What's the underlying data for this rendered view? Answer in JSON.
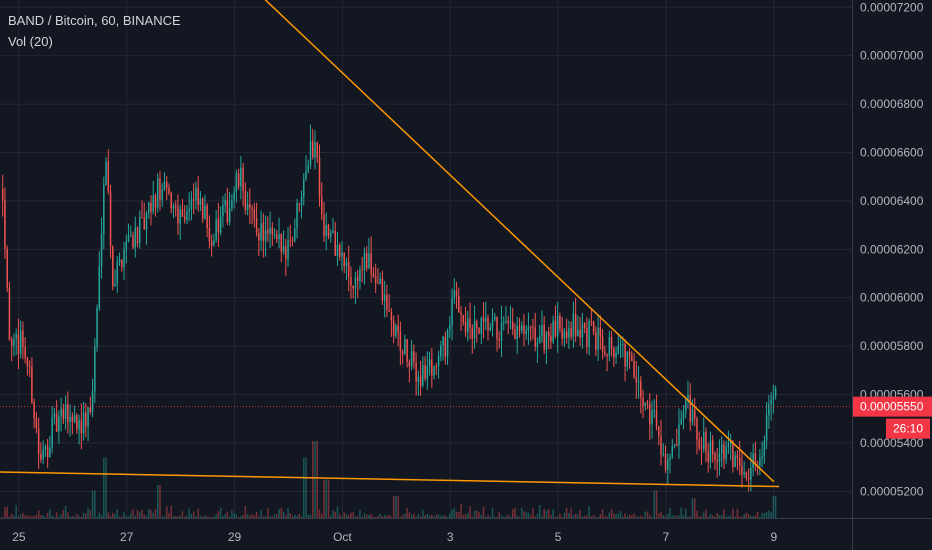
{
  "chart_data": {
    "type": "candlestick",
    "title": "BAND / Bitcoin, 60, BINANCE",
    "indicator": "Vol (20)",
    "x_tick_labels": [
      "25",
      "27",
      "29",
      "Oct",
      "3",
      "5",
      "7",
      "9"
    ],
    "y_tick_labels": [
      "0.00007200",
      "0.00007000",
      "0.00006800",
      "0.00006600",
      "0.00006400",
      "0.00006200",
      "0.00006000",
      "0.00005800",
      "0.00005600",
      "0.00005400",
      "0.00005200"
    ],
    "y_ticks": [
      7.2e-05,
      7e-05,
      6.8e-05,
      6.6e-05,
      6.4e-05,
      6.2e-05,
      6e-05,
      5.8e-05,
      5.6e-05,
      5.4e-05,
      5.2e-05
    ],
    "ylim": [
      5.09e-05,
      7.23e-05
    ],
    "x_ticks_days": [
      25,
      27,
      29,
      31,
      33,
      35,
      37,
      39
    ],
    "xlim_days": [
      24.65,
      40.45
    ],
    "price_path": [
      [
        24.7,
        6.45e-05
      ],
      [
        24.85,
        5.75e-05
      ],
      [
        25.05,
        5.85e-05
      ],
      [
        25.25,
        5.6e-05
      ],
      [
        25.4,
        5.3e-05
      ],
      [
        25.6,
        5.45e-05
      ],
      [
        25.9,
        5.52e-05
      ],
      [
        26.2,
        5.48e-05
      ],
      [
        26.35,
        5.55e-05
      ],
      [
        26.5,
        6.15e-05
      ],
      [
        26.6,
        6.65e-05
      ],
      [
        26.75,
        6.05e-05
      ],
      [
        27.0,
        6.25e-05
      ],
      [
        27.3,
        6.28e-05
      ],
      [
        27.6,
        6.45e-05
      ],
      [
        28.0,
        6.35e-05
      ],
      [
        28.3,
        6.4e-05
      ],
      [
        28.6,
        6.25e-05
      ],
      [
        28.9,
        6.38e-05
      ],
      [
        29.1,
        6.5e-05
      ],
      [
        29.3,
        6.32e-05
      ],
      [
        29.6,
        6.25e-05
      ],
      [
        29.9,
        6.2e-05
      ],
      [
        30.1,
        6.28e-05
      ],
      [
        30.3,
        6.55e-05
      ],
      [
        30.5,
        6.65e-05
      ],
      [
        30.65,
        6.3e-05
      ],
      [
        30.9,
        6.2e-05
      ],
      [
        31.2,
        6.05e-05
      ],
      [
        31.4,
        6.15e-05
      ],
      [
        31.6,
        6.1e-05
      ],
      [
        31.9,
        5.9e-05
      ],
      [
        32.2,
        5.75e-05
      ],
      [
        32.4,
        5.68e-05
      ],
      [
        32.7,
        5.72e-05
      ],
      [
        32.9,
        5.8e-05
      ],
      [
        33.1,
        6.02e-05
      ],
      [
        33.35,
        5.85e-05
      ],
      [
        33.7,
        5.87e-05
      ],
      [
        34.2,
        5.85e-05
      ],
      [
        34.6,
        5.83e-05
      ],
      [
        34.9,
        5.85e-05
      ],
      [
        35.2,
        5.9e-05
      ],
      [
        35.5,
        5.85e-05
      ],
      [
        35.9,
        5.82e-05
      ],
      [
        36.3,
        5.75e-05
      ],
      [
        36.5,
        5.6e-05
      ],
      [
        36.8,
        5.5e-05
      ],
      [
        37.0,
        5.32e-05
      ],
      [
        37.15,
        5.35e-05
      ],
      [
        37.4,
        5.55e-05
      ],
      [
        37.6,
        5.4e-05
      ],
      [
        37.9,
        5.37e-05
      ],
      [
        38.2,
        5.35e-05
      ],
      [
        38.4,
        5.32e-05
      ],
      [
        38.55,
        5.3e-05
      ],
      [
        38.7,
        5.32e-05
      ],
      [
        38.85,
        5.45e-05
      ],
      [
        38.92,
        5.65e-05
      ],
      [
        39.0,
        5.62e-05
      ],
      [
        39.05,
        5.56e-05
      ]
    ],
    "volume_spikes": [
      [
        26.4,
        0.25
      ],
      [
        26.6,
        0.55
      ],
      [
        27.6,
        0.3
      ],
      [
        30.3,
        0.55
      ],
      [
        30.5,
        0.7
      ],
      [
        30.7,
        0.35
      ],
      [
        32.0,
        0.2
      ],
      [
        36.8,
        0.25
      ],
      [
        37.5,
        0.18
      ],
      [
        39.0,
        0.2
      ]
    ],
    "trendlines": [
      {
        "name": "descending-resistance",
        "color": "#ff9800",
        "from": [
          29.55,
          7.235e-05
        ],
        "to": [
          39.0,
          5.24e-05
        ]
      },
      {
        "name": "support",
        "color": "#ff9800",
        "from": [
          24.65,
          5.28e-05
        ],
        "to": [
          39.1,
          5.22e-05
        ]
      }
    ],
    "last_price": {
      "value": 5.55e-05,
      "label": "0.00005550",
      "countdown": "26:10",
      "color": "#f23645"
    },
    "colors": {
      "up": "#26a69a",
      "down": "#ef5350",
      "background": "#131722",
      "grid": "#242733",
      "text": "#b2b5be"
    },
    "grid": true,
    "legend": "top-left"
  }
}
